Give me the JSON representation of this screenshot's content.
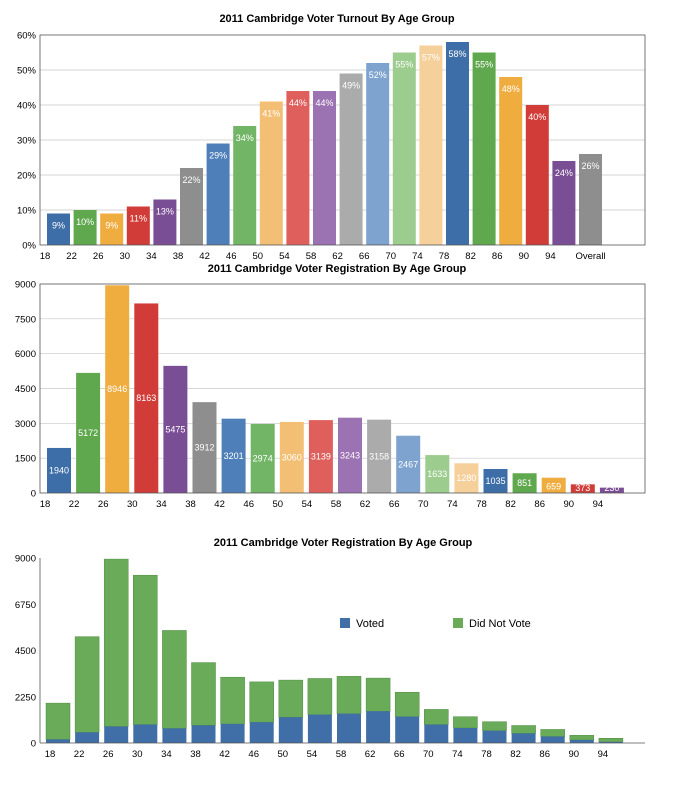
{
  "palette": [
    "#3d6ea8",
    "#5fa84e",
    "#efac3f",
    "#d13c38",
    "#7a4e95",
    "#8e8e8e",
    "#4f7fb8",
    "#72b566",
    "#f3bf74",
    "#de5f5c",
    "#9b72b2",
    "#ababab",
    "#7ea3cf",
    "#9dcd8e",
    "#f6d09b"
  ],
  "stack_colors": {
    "voted": "#3f6fa6",
    "not_voted": "#6aab5a"
  },
  "chart_data": [
    {
      "type": "bar",
      "title": "2011 Cambridge Voter Turnout By Age Group",
      "x_ticks": [
        "18",
        "22",
        "26",
        "30",
        "34",
        "38",
        "42",
        "46",
        "50",
        "54",
        "58",
        "62",
        "66",
        "70",
        "74",
        "78",
        "82",
        "86",
        "90",
        "94",
        "Overall"
      ],
      "categories": [
        "18",
        "22",
        "26",
        "30",
        "34",
        "38",
        "42",
        "46",
        "50",
        "54",
        "58",
        "62",
        "66",
        "70",
        "74",
        "78",
        "82",
        "86",
        "90",
        "94",
        "Overall"
      ],
      "values": [
        9,
        10,
        9,
        11,
        13,
        22,
        29,
        34,
        41,
        44,
        44,
        49,
        52,
        55,
        57,
        58,
        55,
        48,
        40,
        24,
        26
      ],
      "data_labels": [
        "9%",
        "10%",
        "9%",
        "11%",
        "13%",
        "22%",
        "29%",
        "34%",
        "41%",
        "44%",
        "44%",
        "49%",
        "52%",
        "55%",
        "57%",
        "58%",
        "55%",
        "48%",
        "40%",
        "24%",
        "26%"
      ],
      "y_ticks": [
        "0%",
        "10%",
        "20%",
        "30%",
        "40%",
        "50%",
        "60%"
      ],
      "ylim": [
        0,
        60
      ],
      "grid": true
    },
    {
      "type": "bar",
      "title": "2011 Cambridge Voter Registration By Age Group",
      "x_ticks": [
        "18",
        "22",
        "26",
        "30",
        "34",
        "38",
        "42",
        "46",
        "50",
        "54",
        "58",
        "62",
        "66",
        "70",
        "74",
        "78",
        "82",
        "86",
        "90",
        "94"
      ],
      "categories": [
        "18",
        "22",
        "26",
        "30",
        "34",
        "38",
        "42",
        "46",
        "50",
        "54",
        "58",
        "62",
        "66",
        "70",
        "74",
        "78",
        "82",
        "86",
        "90",
        "94"
      ],
      "values": [
        1940,
        5172,
        8946,
        8163,
        5475,
        3912,
        3201,
        2974,
        3060,
        3139,
        3243,
        3158,
        2467,
        1633,
        1280,
        1035,
        851,
        659,
        373,
        230
      ],
      "data_labels": [
        "1940",
        "5172",
        "8946",
        "8163",
        "5475",
        "3912",
        "3201",
        "2974",
        "3060",
        "3139",
        "3243",
        "3158",
        "2467",
        "1633",
        "1280",
        "1035",
        "851",
        "659",
        "373",
        "230"
      ],
      "y_ticks": [
        "0",
        "1500",
        "3000",
        "4500",
        "6000",
        "7500",
        "9000"
      ],
      "ylim": [
        0,
        9000
      ],
      "grid": true
    },
    {
      "type": "bar",
      "stacked": true,
      "title": "2011 Cambridge Voter Registration By Age Group",
      "x_ticks": [
        "18",
        "22",
        "26",
        "30",
        "34",
        "38",
        "42",
        "46",
        "50",
        "54",
        "58",
        "62",
        "66",
        "70",
        "74",
        "78",
        "82",
        "86",
        "90",
        "94"
      ],
      "categories": [
        "18",
        "22",
        "26",
        "30",
        "34",
        "38",
        "42",
        "46",
        "50",
        "54",
        "58",
        "62",
        "66",
        "70",
        "74",
        "78",
        "82",
        "86",
        "90",
        "94"
      ],
      "series": [
        {
          "name": "Voted",
          "values": [
            175,
            517,
            805,
            898,
            712,
            861,
            928,
            1011,
            1255,
            1381,
            1427,
            1547,
            1283,
            898,
            730,
            600,
            468,
            316,
            149,
            55
          ]
        },
        {
          "name": "Did Not Vote",
          "values": [
            1765,
            4655,
            8141,
            7265,
            4763,
            3051,
            2273,
            1963,
            1805,
            1758,
            1816,
            1611,
            1184,
            735,
            550,
            435,
            383,
            343,
            224,
            175
          ]
        }
      ],
      "y_ticks": [
        "0",
        "2250",
        "4500",
        "6750",
        "9000"
      ],
      "ylim": [
        0,
        9000
      ],
      "legend_position": "upper-right, inside plot",
      "grid": false
    }
  ]
}
